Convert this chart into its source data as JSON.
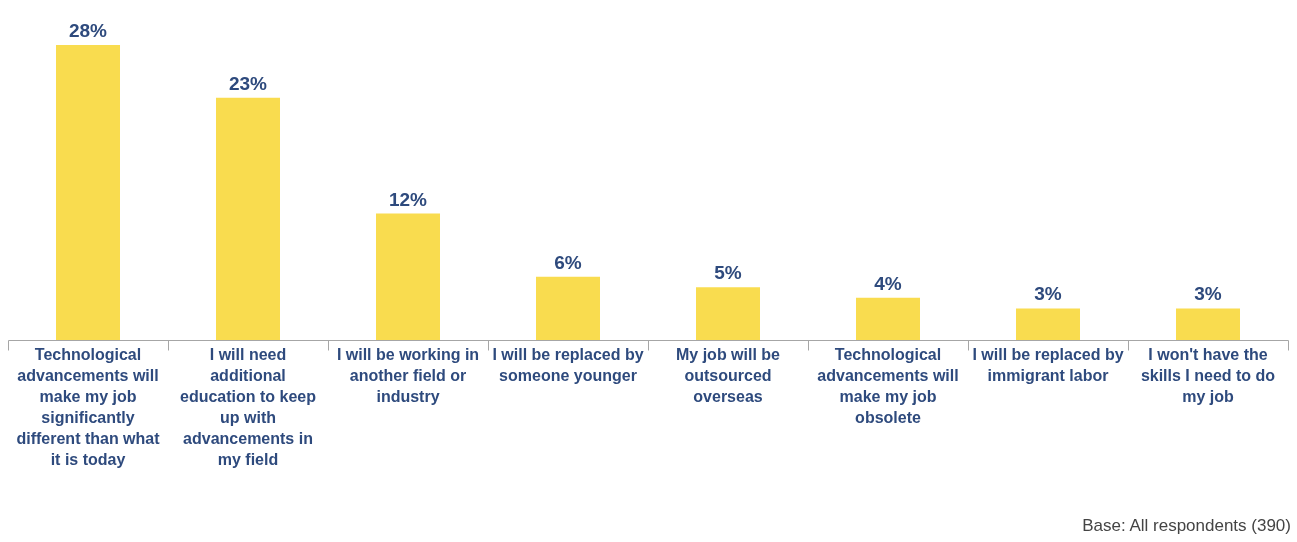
{
  "chart_data": {
    "type": "bar",
    "categories": [
      "Technological advancements will make my job significantly different than what it is today",
      "I will need additional education to keep up with advancements in my field",
      "I will be working in another field or industry",
      "I will be replaced by someone younger",
      "My job will be outsourced overseas",
      "Technological advancements will make my job obsolete",
      "I will be replaced by immigrant labor",
      "I won't have the skills I need to do my job"
    ],
    "values": [
      28,
      23,
      12,
      6,
      5,
      4,
      3,
      3
    ],
    "value_labels": [
      "28%",
      "23%",
      "12%",
      "6%",
      "5%",
      "4%",
      "3%",
      "3%"
    ],
    "color": "#f9dc4f",
    "annotations": [
      "Base: All respondents (390)"
    ]
  }
}
